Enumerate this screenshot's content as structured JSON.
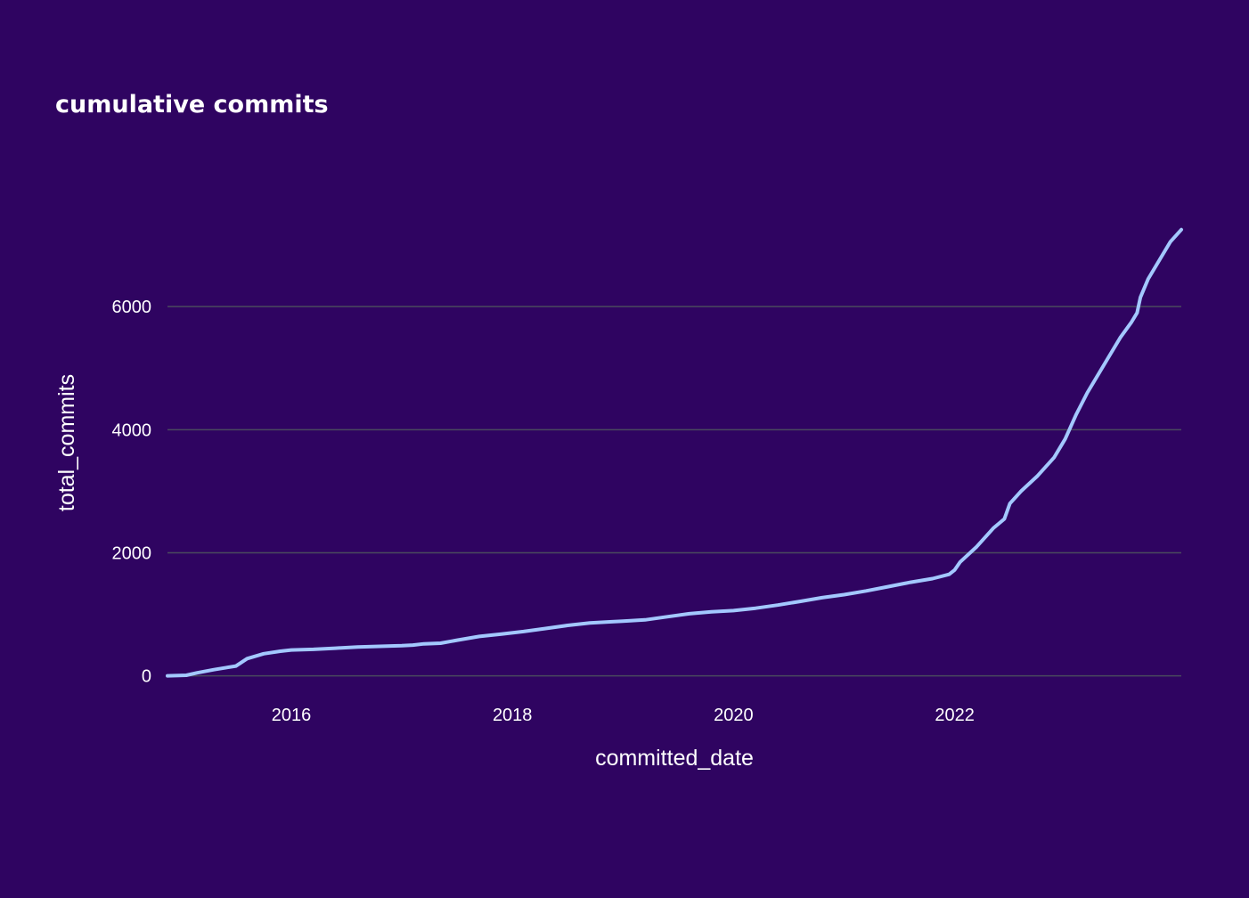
{
  "chart_data": {
    "type": "line",
    "title": "cumulative commits",
    "xlabel": "committed_date",
    "ylabel": "total_commits",
    "xlim": [
      2014.88,
      2024.05
    ],
    "ylim": [
      -700,
      8000
    ],
    "xticks": [
      2016,
      2018,
      2020,
      2022
    ],
    "xtick_labels": [
      "2016",
      "2018",
      "2020",
      "2022"
    ],
    "yticks": [
      0,
      2000,
      4000,
      6000
    ],
    "ytick_labels": [
      "0",
      "2000",
      "4000",
      "6000"
    ],
    "grid": true,
    "colors": {
      "background": "#2f0461",
      "line": "#a3c8ff",
      "grid": "#4a4a5e",
      "text": "#ffffff"
    },
    "series": [
      {
        "name": "total_commits",
        "x": [
          2014.88,
          2015.05,
          2015.15,
          2015.3,
          2015.5,
          2015.6,
          2015.75,
          2015.9,
          2016.0,
          2016.2,
          2016.4,
          2016.6,
          2016.8,
          2017.0,
          2017.1,
          2017.2,
          2017.35,
          2017.5,
          2017.7,
          2017.9,
          2018.1,
          2018.3,
          2018.5,
          2018.7,
          2018.9,
          2019.0,
          2019.2,
          2019.4,
          2019.6,
          2019.8,
          2020.0,
          2020.2,
          2020.4,
          2020.6,
          2020.8,
          2021.0,
          2021.2,
          2021.4,
          2021.6,
          2021.8,
          2021.95,
          2022.0,
          2022.05,
          2022.2,
          2022.35,
          2022.45,
          2022.5,
          2022.6,
          2022.75,
          2022.9,
          2023.0,
          2023.1,
          2023.2,
          2023.3,
          2023.4,
          2023.5,
          2023.6,
          2023.65,
          2023.68,
          2023.75,
          2023.85,
          2023.95,
          2024.05
        ],
        "y": [
          0,
          10,
          50,
          100,
          160,
          280,
          360,
          400,
          420,
          430,
          450,
          470,
          480,
          490,
          500,
          520,
          530,
          580,
          640,
          680,
          720,
          770,
          820,
          860,
          880,
          890,
          910,
          960,
          1010,
          1040,
          1060,
          1100,
          1150,
          1210,
          1270,
          1320,
          1380,
          1450,
          1520,
          1580,
          1650,
          1720,
          1850,
          2100,
          2400,
          2550,
          2800,
          3000,
          3250,
          3550,
          3850,
          4250,
          4600,
          4900,
          5200,
          5500,
          5750,
          5900,
          6150,
          6450,
          6750,
          7050,
          7250
        ]
      }
    ]
  }
}
